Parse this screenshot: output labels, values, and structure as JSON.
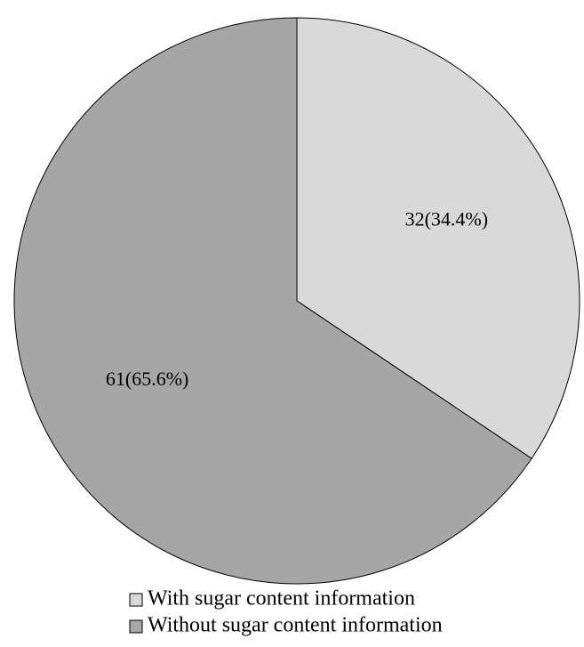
{
  "chart_data": {
    "type": "pie",
    "title": "",
    "start_angle_deg": 0,
    "direction": "clockwise",
    "slices": [
      {
        "name": "With sugar content information",
        "value": 32,
        "percent": 34.4,
        "label": "32(34.4%)",
        "color": "#d9d9d9"
      },
      {
        "name": "Without sugar content information",
        "value": 61,
        "percent": 65.6,
        "label": "61(65.6%)",
        "color": "#a6a6a6"
      }
    ],
    "legend": {
      "placement": "bottom",
      "entries": [
        "With sugar content information",
        "Without sugar content information"
      ]
    }
  }
}
